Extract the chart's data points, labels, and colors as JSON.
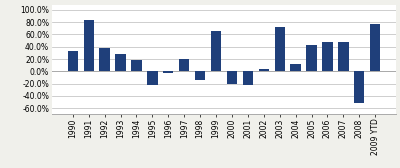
{
  "categories": [
    "1990",
    "1991",
    "1992",
    "1993",
    "1994",
    "1995",
    "1996",
    "1997",
    "1998",
    "1999",
    "2000",
    "2001",
    "2002",
    "2003",
    "2004",
    "2005",
    "2006",
    "2007",
    "2008",
    "2009 YTD"
  ],
  "values": [
    33,
    83,
    38,
    28,
    18,
    -22,
    -2,
    20,
    -15,
    65,
    -20,
    -22,
    3,
    73,
    12,
    43,
    47,
    47,
    -52,
    77
  ],
  "bar_color": "#1F3F7A",
  "ylim": [
    -70,
    108
  ],
  "yticks": [
    -60,
    -40,
    -20,
    0,
    20,
    40,
    60,
    80,
    100
  ],
  "background_color": "#f0f0eb",
  "plot_bg_color": "#ffffff",
  "grid_color": "#bbbbbb",
  "tick_fontsize": 5.5
}
